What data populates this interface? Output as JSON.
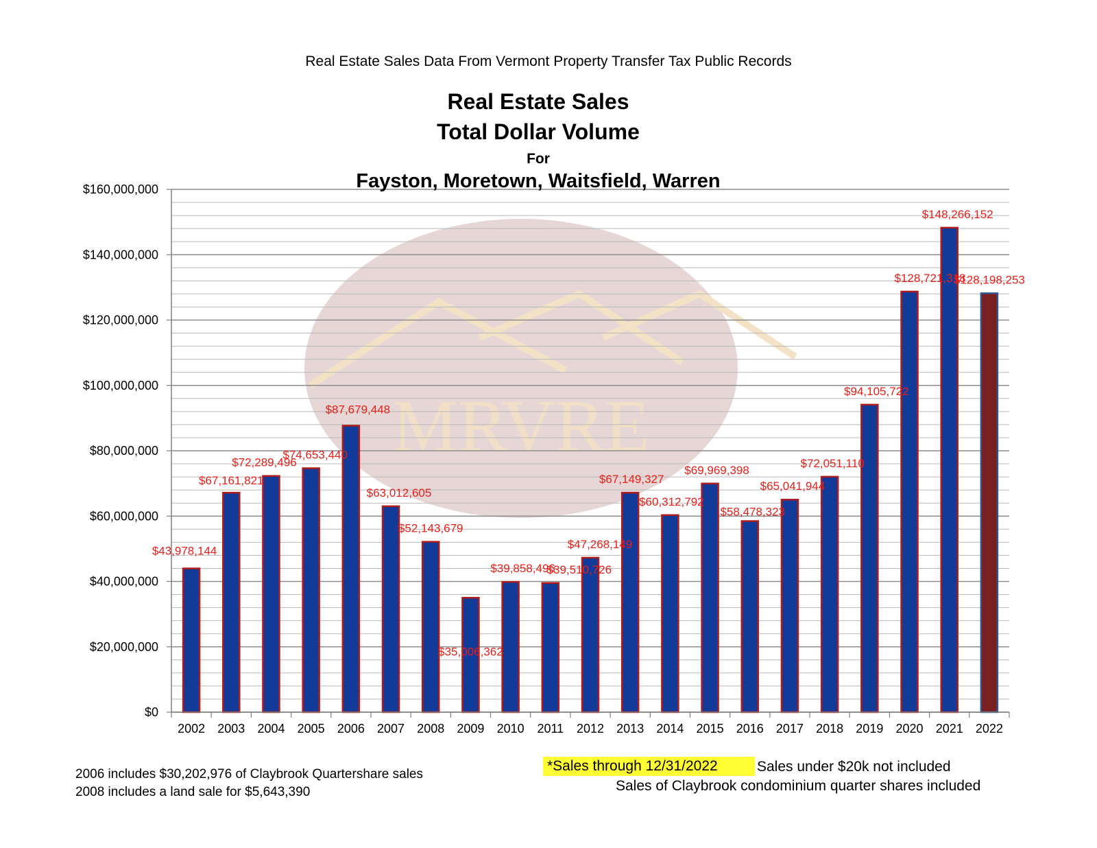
{
  "header": {
    "source_line": "Real Estate Sales Data From Vermont Property Transfer Tax Public Records",
    "title_line1": "Real Estate Sales",
    "title_line2": "Total Dollar Volume",
    "title_line3": "For",
    "title_line4": "Fayston, Moretown, Waitsfield, Warren"
  },
  "watermark": {
    "text": "MRVRE"
  },
  "chart_data": {
    "type": "bar",
    "title": "Real Estate Sales Total Dollar Volume For Fayston, Moretown, Waitsfield, Warren",
    "categories": [
      "2002",
      "2003",
      "2004",
      "2005",
      "2006",
      "2007",
      "2008",
      "2009",
      "2010",
      "2011",
      "2012",
      "2013",
      "2014",
      "2015",
      "2016",
      "2017",
      "2018",
      "2019",
      "2020",
      "2021",
      "2022"
    ],
    "values": [
      43978144,
      67161821,
      72289496,
      74653440,
      87679448,
      63012605,
      52143679,
      35006362,
      39858496,
      39510726,
      47268149,
      67149327,
      60312792,
      69969398,
      58478323,
      65041944,
      72051110,
      94105722,
      128721318,
      148266152,
      128198253
    ],
    "data_labels": [
      "$43,978,144",
      "$67,161,821",
      "$72,289,496",
      "$74,653,440",
      "$87,679,448",
      "$63,012,605",
      "$52,143,679",
      "$35,006,362",
      "$39,858,496",
      "$39,510,726",
      "$47,268,149",
      "$67,149,327",
      "$60,312,792",
      "$69,969,398",
      "$58,478,323",
      "$65,041,944",
      "$72,051,110",
      "$94,105,722",
      "$128,721,318",
      "$148,266,152",
      "$128,198,253"
    ],
    "ylim": [
      0,
      160000000
    ],
    "y_ticks": [
      0,
      20000000,
      40000000,
      60000000,
      80000000,
      100000000,
      120000000,
      140000000,
      160000000
    ],
    "y_tick_labels": [
      "$0",
      "$20,000,000",
      "$40,000,000",
      "$60,000,000",
      "$80,000,000",
      "$100,000,000",
      "$120,000,000",
      "$140,000,000",
      "$160,000,000"
    ],
    "xlabel": "",
    "ylabel": "",
    "grid": true,
    "colors": {
      "bar": "#123a99",
      "bar_edge": "#b01c1c",
      "highlight_bar": "#7a2020",
      "highlight_edge": "#2f5597",
      "label": "#e8201a"
    },
    "highlight_category": "2022"
  },
  "notes": {
    "footnote_1": "2006 includes $30,202,976 of Claybrook Quartershare sales",
    "footnote_2": "2008 includes a land sale for $5,643,390",
    "highlight": "*Sales through 12/31/2022",
    "under20k": "Sales under $20k not included",
    "claybrook": "Sales of Claybrook condominium quarter shares included"
  }
}
